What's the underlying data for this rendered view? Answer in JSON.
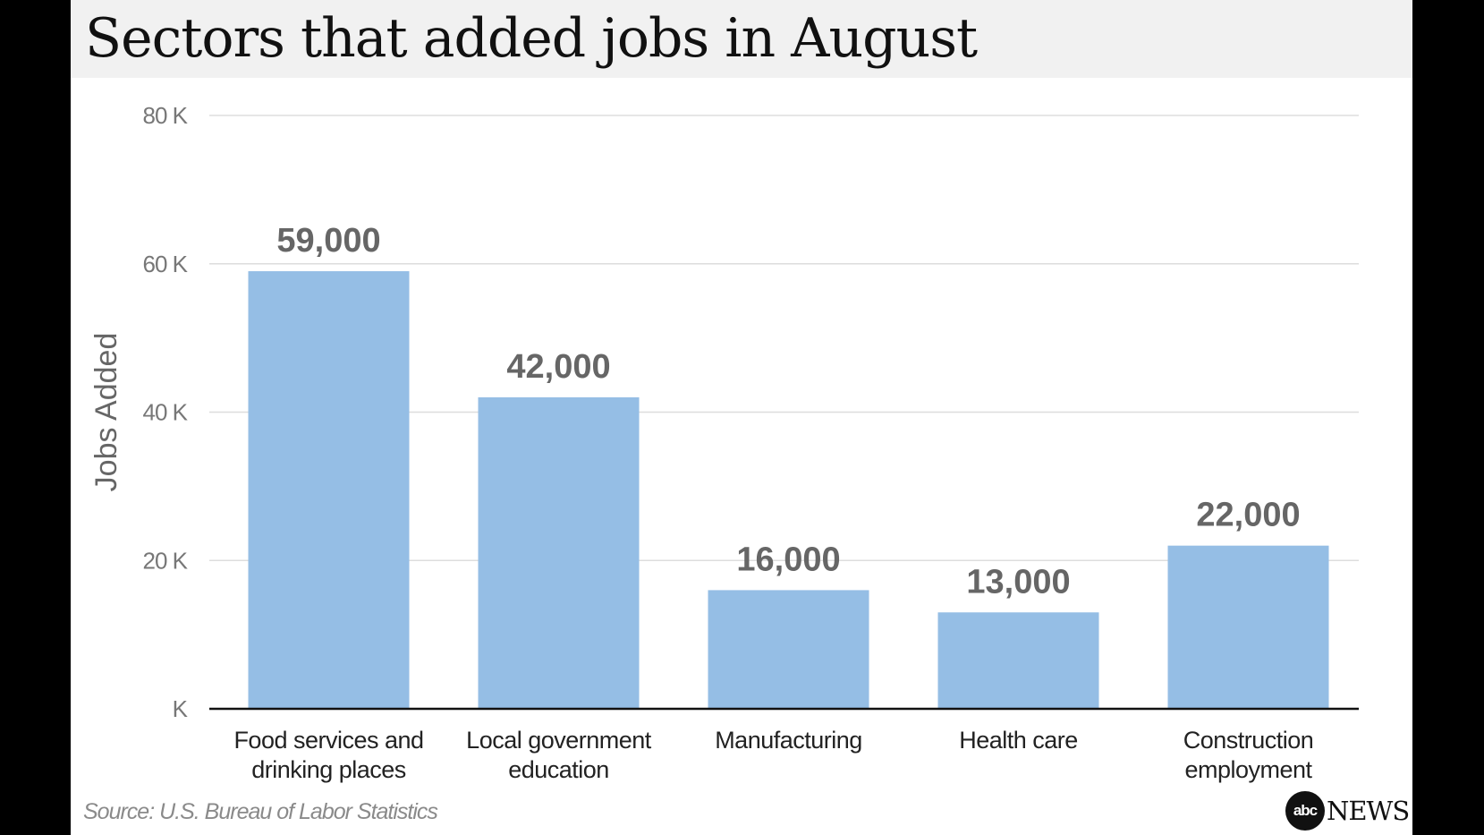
{
  "title": "Sectors that added jobs in August",
  "source": "Source: U.S. Bureau of Labor Statistics",
  "logo": {
    "mark": "abc",
    "text": "NEWS"
  },
  "colors": {
    "bar": "#95bee5",
    "grid": "#dddddd",
    "axis": "#111111",
    "value_label": "#666666",
    "tick_label": "#777777",
    "category_label": "#222222"
  },
  "chart_data": {
    "type": "bar",
    "ylabel": "Jobs Added",
    "xlabel": "",
    "ylim": [
      0,
      80000
    ],
    "yticks": [
      0,
      20000,
      40000,
      60000,
      80000
    ],
    "ytick_labels": [
      "K",
      "20 K",
      "40 K",
      "60 K",
      "80 K"
    ],
    "categories": [
      [
        "Food services and",
        "drinking places"
      ],
      [
        "Local government",
        "education"
      ],
      [
        "Manufacturing"
      ],
      [
        "Health care"
      ],
      [
        "Construction",
        "employment"
      ]
    ],
    "values": [
      59000,
      42000,
      16000,
      13000,
      22000
    ],
    "value_labels": [
      "59,000",
      "42,000",
      "16,000",
      "13,000",
      "22,000"
    ],
    "grid": true,
    "legend": "none"
  }
}
